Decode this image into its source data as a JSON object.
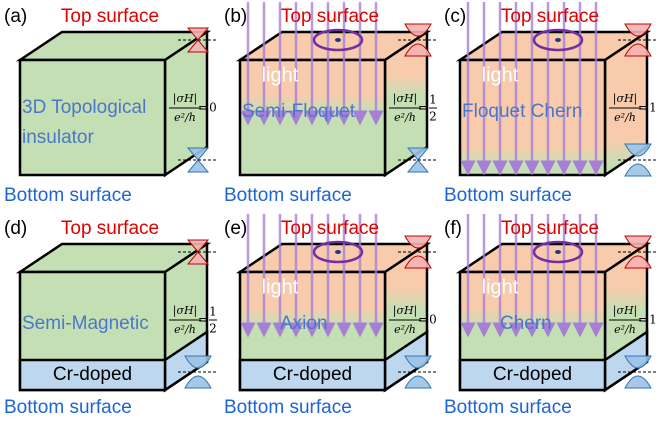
{
  "panels": [
    {
      "label": "(a)",
      "top": "Top surface",
      "bottom": "Bottom surface",
      "material": [
        "3D Topological",
        "insulator"
      ],
      "formula": {
        "numerator": "|σH|",
        "denominator": "e²/h",
        "equals": "=",
        "value": "0"
      }
    },
    {
      "label": "(b)",
      "top": "Top surface",
      "bottom": "Bottom surface",
      "material": [
        "Semi-Floquet"
      ],
      "light": "light",
      "formula": {
        "numerator": "|σH|",
        "denominator": "e²/h",
        "equals": "=",
        "value": {
          "numerator": "1",
          "denominator": "2"
        }
      }
    },
    {
      "label": "(c)",
      "top": "Top surface",
      "bottom": "Bottom surface",
      "material": [
        "Floquet Chern"
      ],
      "light": "light",
      "formula": {
        "numerator": "|σH|",
        "denominator": "e²/h",
        "equals": "=",
        "value": "1"
      }
    },
    {
      "label": "(d)",
      "top": "Top surface",
      "bottom": "Bottom surface",
      "material": [
        "Semi-Magnetic"
      ],
      "layer": "Cr-doped",
      "formula": {
        "numerator": "|σH|",
        "denominator": "e²/h",
        "equals": "=",
        "value": {
          "numerator": "1",
          "denominator": "2"
        }
      }
    },
    {
      "label": "(e)",
      "top": "Top surface",
      "bottom": "Bottom surface",
      "material": [
        "Axion"
      ],
      "light": "light",
      "layer": "Cr-doped",
      "formula": {
        "numerator": "|σH|",
        "denominator": "e²/h",
        "equals": "=",
        "value": "0"
      }
    },
    {
      "label": "(f)",
      "top": "Top surface",
      "bottom": "Bottom surface",
      "material": [
        "Chern"
      ],
      "light": "light",
      "layer": "Cr-doped",
      "formula": {
        "numerator": "|σH|",
        "denominator": "e²/h",
        "equals": "=",
        "value": "1"
      }
    }
  ]
}
